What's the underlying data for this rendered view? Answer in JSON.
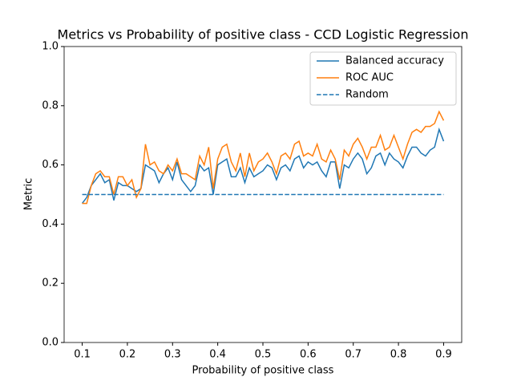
{
  "chart_data": {
    "type": "line",
    "title": "Metrics vs Probability of positive class - CCD Logistic Regression",
    "x_label": "Probability of positive class",
    "y_label": "Metric",
    "x": [
      0.1,
      0.11,
      0.12,
      0.13,
      0.14,
      0.15,
      0.16,
      0.17,
      0.18,
      0.19,
      0.2,
      0.21,
      0.22,
      0.23,
      0.24,
      0.25,
      0.26,
      0.27,
      0.28,
      0.29,
      0.3,
      0.31,
      0.32,
      0.33,
      0.34,
      0.35,
      0.36,
      0.37,
      0.38,
      0.39,
      0.4,
      0.41,
      0.42,
      0.43,
      0.44,
      0.45,
      0.46,
      0.47,
      0.48,
      0.49,
      0.5,
      0.51,
      0.52,
      0.53,
      0.54,
      0.55,
      0.56,
      0.57,
      0.58,
      0.59,
      0.6,
      0.61,
      0.62,
      0.63,
      0.64,
      0.65,
      0.66,
      0.67,
      0.68,
      0.69,
      0.7,
      0.71,
      0.72,
      0.73,
      0.74,
      0.75,
      0.76,
      0.77,
      0.78,
      0.79,
      0.8,
      0.81,
      0.82,
      0.83,
      0.84,
      0.85,
      0.86,
      0.87,
      0.88,
      0.89,
      0.9
    ],
    "series": [
      {
        "name": "Balanced accuracy",
        "color": "#1f77b4",
        "dashed": false,
        "values": [
          0.47,
          0.49,
          0.53,
          0.55,
          0.57,
          0.54,
          0.55,
          0.48,
          0.54,
          0.53,
          0.53,
          0.52,
          0.51,
          0.52,
          0.6,
          0.59,
          0.58,
          0.54,
          0.57,
          0.59,
          0.55,
          0.61,
          0.55,
          0.53,
          0.51,
          0.53,
          0.6,
          0.58,
          0.59,
          0.5,
          0.6,
          0.61,
          0.62,
          0.56,
          0.56,
          0.59,
          0.54,
          0.59,
          0.56,
          0.57,
          0.58,
          0.6,
          0.59,
          0.55,
          0.59,
          0.6,
          0.58,
          0.62,
          0.63,
          0.59,
          0.61,
          0.6,
          0.61,
          0.58,
          0.56,
          0.61,
          0.61,
          0.52,
          0.6,
          0.59,
          0.62,
          0.64,
          0.62,
          0.57,
          0.59,
          0.63,
          0.64,
          0.6,
          0.64,
          0.62,
          0.61,
          0.59,
          0.63,
          0.66,
          0.66,
          0.64,
          0.63,
          0.65,
          0.66,
          0.72,
          0.68
        ]
      },
      {
        "name": "ROC AUC",
        "color": "#ff7f0e",
        "dashed": false,
        "values": [
          0.47,
          0.47,
          0.53,
          0.57,
          0.58,
          0.56,
          0.56,
          0.5,
          0.56,
          0.56,
          0.53,
          0.55,
          0.49,
          0.52,
          0.67,
          0.6,
          0.61,
          0.58,
          0.57,
          0.6,
          0.58,
          0.62,
          0.57,
          0.57,
          0.56,
          0.55,
          0.63,
          0.6,
          0.66,
          0.52,
          0.62,
          0.66,
          0.67,
          0.61,
          0.58,
          0.64,
          0.56,
          0.64,
          0.58,
          0.61,
          0.62,
          0.64,
          0.61,
          0.57,
          0.63,
          0.64,
          0.62,
          0.67,
          0.68,
          0.63,
          0.64,
          0.63,
          0.67,
          0.62,
          0.61,
          0.65,
          0.62,
          0.55,
          0.65,
          0.63,
          0.67,
          0.69,
          0.66,
          0.62,
          0.66,
          0.66,
          0.7,
          0.65,
          0.66,
          0.7,
          0.66,
          0.62,
          0.67,
          0.71,
          0.72,
          0.71,
          0.73,
          0.73,
          0.74,
          0.78,
          0.75
        ]
      },
      {
        "name": "Random",
        "color": "#1f77b4",
        "dashed": true,
        "x": [
          0.1,
          0.9
        ],
        "values": [
          0.5,
          0.5
        ]
      }
    ],
    "xlim": [
      0.06,
      0.94
    ],
    "ylim": [
      0,
      1
    ],
    "xticks": [
      0.1,
      0.2,
      0.3,
      0.4,
      0.5,
      0.6,
      0.7,
      0.8,
      0.9
    ],
    "yticks": [
      {
        "value": 0,
        "label": "0.0"
      },
      0.2,
      0.4,
      0.6,
      0.8,
      {
        "value": 1,
        "label": "1.0"
      }
    ],
    "legend": "upper right"
  }
}
